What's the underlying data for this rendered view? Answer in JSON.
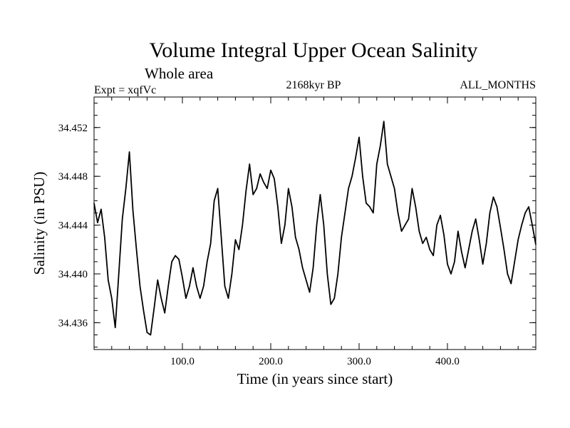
{
  "header": {
    "title": "Volume Integral Upper Ocean Salinity",
    "subtitle": "Whole area",
    "experiment": "Expt = xqfVc",
    "period": "2168kyr BP",
    "months": "ALL_MONTHS"
  },
  "chart_data": {
    "type": "line",
    "title": "Volume Integral Upper Ocean Salinity",
    "xlabel": "Time (in years since start)",
    "ylabel": "Salinity (in PSU)",
    "xlim": [
      0,
      500
    ],
    "ylim": [
      34.4338,
      34.4545
    ],
    "xticks": [
      100,
      200,
      300,
      400
    ],
    "xtick_labels": [
      "100.0",
      "200.0",
      "300.0",
      "400.0"
    ],
    "yticks": [
      34.436,
      34.44,
      34.444,
      34.448,
      34.452
    ],
    "ytick_labels": [
      "34.436",
      "34.440",
      "34.444",
      "34.448",
      "34.452"
    ],
    "grid": false,
    "series": [
      {
        "name": "salinity",
        "color": "#000000",
        "x": [
          0,
          4,
          8,
          12,
          16,
          20,
          24,
          28,
          32,
          36,
          40,
          44,
          48,
          52,
          56,
          60,
          64,
          68,
          72,
          76,
          80,
          84,
          88,
          92,
          96,
          100,
          104,
          108,
          112,
          116,
          120,
          124,
          128,
          132,
          136,
          140,
          144,
          148,
          152,
          156,
          160,
          164,
          168,
          172,
          176,
          180,
          184,
          188,
          192,
          196,
          200,
          204,
          208,
          212,
          216,
          220,
          224,
          228,
          232,
          236,
          240,
          244,
          248,
          252,
          256,
          260,
          264,
          268,
          272,
          276,
          280,
          284,
          288,
          292,
          296,
          300,
          304,
          308,
          312,
          316,
          320,
          324,
          328,
          332,
          336,
          340,
          344,
          348,
          352,
          356,
          360,
          364,
          368,
          372,
          376,
          380,
          384,
          388,
          392,
          396,
          400,
          404,
          408,
          412,
          416,
          420,
          424,
          428,
          432,
          436,
          440,
          444,
          448,
          452,
          456,
          460,
          464,
          468,
          472,
          476,
          480,
          484,
          488,
          492,
          496,
          500
        ],
        "values": [
          34.4458,
          34.4442,
          34.4453,
          34.443,
          34.4395,
          34.438,
          34.4356,
          34.44,
          34.4445,
          34.447,
          34.45,
          34.4452,
          34.442,
          34.439,
          34.437,
          34.4352,
          34.435,
          34.4372,
          34.4395,
          34.438,
          34.4368,
          34.439,
          34.441,
          34.4415,
          34.4412,
          34.4397,
          34.438,
          34.439,
          34.4405,
          34.439,
          34.438,
          34.439,
          34.441,
          34.4425,
          34.446,
          34.447,
          34.443,
          34.439,
          34.438,
          34.44,
          34.4428,
          34.442,
          34.444,
          34.4468,
          34.449,
          34.4465,
          34.447,
          34.4482,
          34.4475,
          34.447,
          34.4485,
          34.4478,
          34.4455,
          34.4425,
          34.444,
          34.447,
          34.4455,
          34.443,
          34.442,
          34.4405,
          34.4395,
          34.4385,
          34.4405,
          34.444,
          34.4465,
          34.444,
          34.44,
          34.4375,
          34.438,
          34.44,
          34.443,
          34.445,
          34.447,
          34.448,
          34.4495,
          34.4512,
          34.448,
          34.4458,
          34.4455,
          34.445,
          34.449,
          34.4505,
          34.4525,
          34.449,
          34.448,
          34.447,
          34.445,
          34.4435,
          34.444,
          34.4445,
          34.447,
          34.4455,
          34.4435,
          34.4425,
          34.443,
          34.442,
          34.4415,
          34.444,
          34.4448,
          34.4432,
          34.4408,
          34.44,
          34.441,
          34.4435,
          34.4418,
          34.4405,
          34.442,
          34.4435,
          34.4445,
          34.4428,
          34.4408,
          34.4425,
          34.445,
          34.4463,
          34.4455,
          34.4438,
          34.442,
          34.44,
          34.4392,
          34.441,
          34.4428,
          34.444,
          34.445,
          34.4455,
          34.444,
          34.4424
        ]
      }
    ]
  }
}
